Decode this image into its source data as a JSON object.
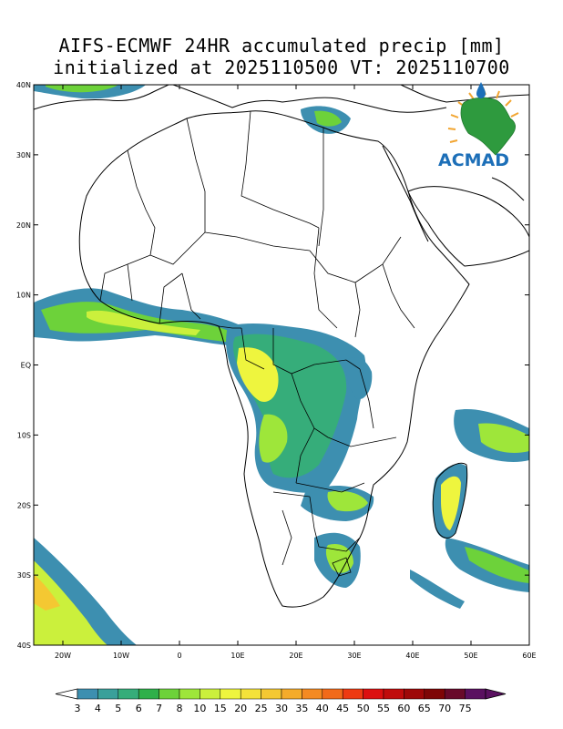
{
  "title": {
    "line1": "AIFS-ECMWF 24HR accumulated precip [mm]",
    "line2": "initialized at 2025110500 VT: 2025110700"
  },
  "map": {
    "lon_labels": [
      "20W",
      "10W",
      "0",
      "10E",
      "20E",
      "30E",
      "40E",
      "50E",
      "60E"
    ],
    "lat_labels": [
      "40N",
      "30N",
      "20N",
      "10N",
      "EQ",
      "10S",
      "20S",
      "30S",
      "40S"
    ],
    "lon_range": [
      -25,
      60
    ],
    "lat_range": [
      -40,
      40
    ],
    "coastline_color": "#000000"
  },
  "logo": {
    "text": "ACMAD",
    "text_color": "#1d6fb8",
    "continent_color": "#2e9a3e",
    "ray_color": "#f2a531"
  },
  "colorbar": {
    "labels": [
      "3",
      "4",
      "5",
      "6",
      "7",
      "8",
      "10",
      "15",
      "20",
      "25",
      "30",
      "35",
      "40",
      "45",
      "50",
      "55",
      "60",
      "65",
      "70",
      "75"
    ],
    "colors": [
      "#3d8fb0",
      "#3aa09a",
      "#36ad7a",
      "#2fb04a",
      "#6dd23a",
      "#9ee63a",
      "#cbf03c",
      "#eef53e",
      "#f4e23a",
      "#f4c832",
      "#f4ab2a",
      "#f48a22",
      "#f26a1a",
      "#ee3a12",
      "#dc1010",
      "#c00c0c",
      "#9e0808",
      "#7e0606",
      "#680a2a",
      "#5a1060"
    ],
    "under_color": "#ffffff",
    "over_color": "#5a1060"
  }
}
